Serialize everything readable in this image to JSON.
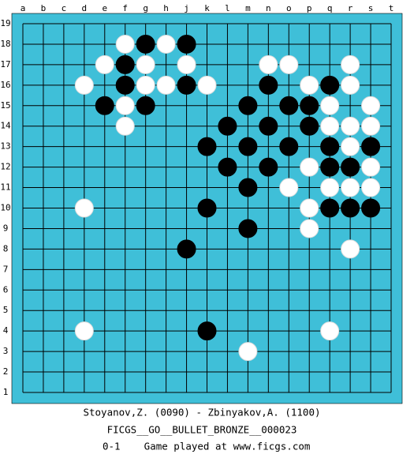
{
  "board": {
    "columns": [
      "a",
      "b",
      "c",
      "d",
      "e",
      "f",
      "g",
      "h",
      "j",
      "k",
      "l",
      "m",
      "n",
      "o",
      "p",
      "q",
      "r",
      "s",
      "t"
    ],
    "rows": [
      19,
      18,
      17,
      16,
      15,
      14,
      13,
      12,
      11,
      10,
      9,
      8,
      7,
      6,
      5,
      4,
      3,
      2,
      1
    ],
    "stones": [
      {
        "col": "f",
        "row": 18,
        "color": "white"
      },
      {
        "col": "g",
        "row": 18,
        "color": "black"
      },
      {
        "col": "h",
        "row": 18,
        "color": "white"
      },
      {
        "col": "j",
        "row": 18,
        "color": "black"
      },
      {
        "col": "e",
        "row": 17,
        "color": "white"
      },
      {
        "col": "f",
        "row": 17,
        "color": "black"
      },
      {
        "col": "g",
        "row": 17,
        "color": "white"
      },
      {
        "col": "j",
        "row": 17,
        "color": "white"
      },
      {
        "col": "n",
        "row": 17,
        "color": "white"
      },
      {
        "col": "o",
        "row": 17,
        "color": "white"
      },
      {
        "col": "r",
        "row": 17,
        "color": "white"
      },
      {
        "col": "d",
        "row": 16,
        "color": "white"
      },
      {
        "col": "f",
        "row": 16,
        "color": "black"
      },
      {
        "col": "g",
        "row": 16,
        "color": "white"
      },
      {
        "col": "h",
        "row": 16,
        "color": "white"
      },
      {
        "col": "j",
        "row": 16,
        "color": "black"
      },
      {
        "col": "k",
        "row": 16,
        "color": "white"
      },
      {
        "col": "n",
        "row": 16,
        "color": "black"
      },
      {
        "col": "p",
        "row": 16,
        "color": "white"
      },
      {
        "col": "q",
        "row": 16,
        "color": "black"
      },
      {
        "col": "r",
        "row": 16,
        "color": "white"
      },
      {
        "col": "e",
        "row": 15,
        "color": "black"
      },
      {
        "col": "f",
        "row": 15,
        "color": "white"
      },
      {
        "col": "g",
        "row": 15,
        "color": "black"
      },
      {
        "col": "m",
        "row": 15,
        "color": "black"
      },
      {
        "col": "o",
        "row": 15,
        "color": "black"
      },
      {
        "col": "p",
        "row": 15,
        "color": "black"
      },
      {
        "col": "q",
        "row": 15,
        "color": "white"
      },
      {
        "col": "s",
        "row": 15,
        "color": "white"
      },
      {
        "col": "f",
        "row": 14,
        "color": "white"
      },
      {
        "col": "l",
        "row": 14,
        "color": "black"
      },
      {
        "col": "n",
        "row": 14,
        "color": "black"
      },
      {
        "col": "p",
        "row": 14,
        "color": "black"
      },
      {
        "col": "q",
        "row": 14,
        "color": "white"
      },
      {
        "col": "r",
        "row": 14,
        "color": "white"
      },
      {
        "col": "s",
        "row": 14,
        "color": "white"
      },
      {
        "col": "k",
        "row": 13,
        "color": "black"
      },
      {
        "col": "m",
        "row": 13,
        "color": "black"
      },
      {
        "col": "o",
        "row": 13,
        "color": "black"
      },
      {
        "col": "q",
        "row": 13,
        "color": "black"
      },
      {
        "col": "r",
        "row": 13,
        "color": "white"
      },
      {
        "col": "s",
        "row": 13,
        "color": "black"
      },
      {
        "col": "l",
        "row": 12,
        "color": "black"
      },
      {
        "col": "n",
        "row": 12,
        "color": "black"
      },
      {
        "col": "p",
        "row": 12,
        "color": "white"
      },
      {
        "col": "q",
        "row": 12,
        "color": "black"
      },
      {
        "col": "r",
        "row": 12,
        "color": "black"
      },
      {
        "col": "s",
        "row": 12,
        "color": "white"
      },
      {
        "col": "m",
        "row": 11,
        "color": "black"
      },
      {
        "col": "o",
        "row": 11,
        "color": "white"
      },
      {
        "col": "q",
        "row": 11,
        "color": "white"
      },
      {
        "col": "r",
        "row": 11,
        "color": "white"
      },
      {
        "col": "s",
        "row": 11,
        "color": "white"
      },
      {
        "col": "d",
        "row": 10,
        "color": "white"
      },
      {
        "col": "k",
        "row": 10,
        "color": "black"
      },
      {
        "col": "p",
        "row": 10,
        "color": "white"
      },
      {
        "col": "q",
        "row": 10,
        "color": "black"
      },
      {
        "col": "r",
        "row": 10,
        "color": "black"
      },
      {
        "col": "s",
        "row": 10,
        "color": "black"
      },
      {
        "col": "m",
        "row": 9,
        "color": "black"
      },
      {
        "col": "p",
        "row": 9,
        "color": "white"
      },
      {
        "col": "j",
        "row": 8,
        "color": "black"
      },
      {
        "col": "r",
        "row": 8,
        "color": "white"
      },
      {
        "col": "d",
        "row": 4,
        "color": "white"
      },
      {
        "col": "k",
        "row": 4,
        "color": "black"
      },
      {
        "col": "q",
        "row": 4,
        "color": "white"
      },
      {
        "col": "m",
        "row": 3,
        "color": "white"
      }
    ]
  },
  "footer": {
    "players": "Stoyanov,Z. (0090) - Zbinyakov,A. (1100)",
    "event": "FICGS__GO__BULLET_BRONZE__000023",
    "result": "0-1    Game played at www.ficgs.com"
  }
}
